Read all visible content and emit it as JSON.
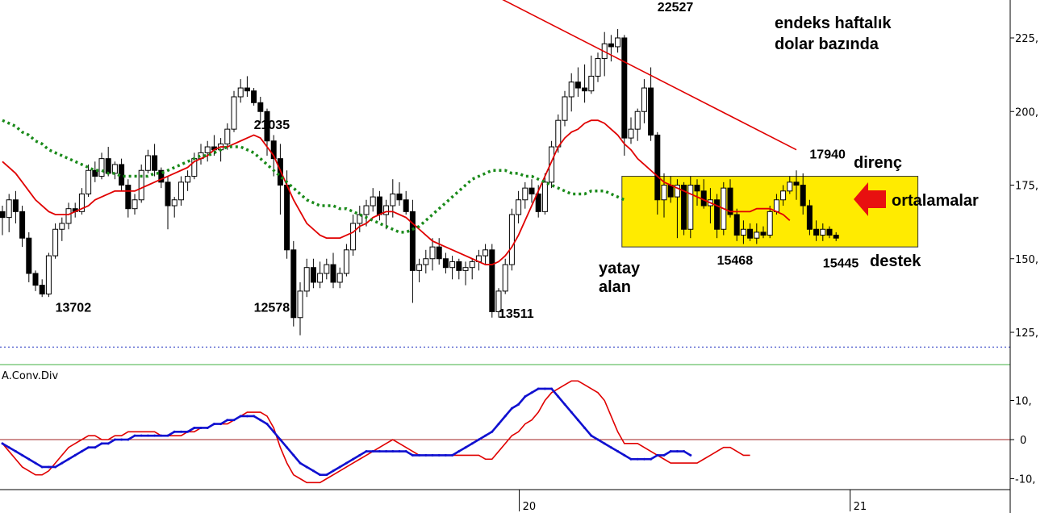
{
  "chart_data": [
    {
      "type": "candlestick",
      "title": "endeks haftalık dolar bazında",
      "y_ticks": [
        "225,",
        "200,",
        "175,",
        "150,",
        "125,"
      ],
      "y_tick_values": [
        225,
        200,
        175,
        150,
        125
      ],
      "ylim": [
        115,
        255
      ],
      "x_ticks": [
        "20",
        "21"
      ],
      "x_tick_bars": [
        78,
        128
      ],
      "bar_count": 128,
      "price_labels": [
        "13702",
        "21035",
        "12578",
        "13511",
        "22527",
        "17940",
        "15468",
        "15445"
      ],
      "price_label_bars": [
        8,
        38,
        38,
        75,
        99,
        122,
        108,
        124
      ],
      "price_label_values": [
        132,
        194,
        132,
        130,
        234,
        184,
        148,
        147
      ],
      "annotations": {
        "direnc": "direnç",
        "ortalamalar": "ortalamalar",
        "destek": "destek",
        "yatay": "yatay",
        "alan": "alan"
      },
      "yellow_zone": {
        "bar_start": 94,
        "bar_end": 138,
        "y_from": 154,
        "y_to": 178
      },
      "trendline": {
        "from": {
          "bar": 53,
          "y": 264
        },
        "to": {
          "bar": 120,
          "y": 187
        }
      },
      "dashed_level": 120,
      "candles": [
        [
          166,
          168,
          158,
          164
        ],
        [
          164,
          172,
          159,
          170
        ],
        [
          170,
          173,
          162,
          166
        ],
        [
          166,
          168,
          154,
          157
        ],
        [
          157,
          159,
          142,
          145
        ],
        [
          145,
          146,
          139,
          141
        ],
        [
          141,
          143,
          137,
          138
        ],
        [
          138,
          152,
          137,
          151
        ],
        [
          151,
          162,
          150,
          160
        ],
        [
          160,
          164,
          156,
          162
        ],
        [
          162,
          169,
          160,
          167
        ],
        [
          167,
          169,
          164,
          166
        ],
        [
          166,
          174,
          165,
          172
        ],
        [
          172,
          182,
          171,
          180
        ],
        [
          180,
          183,
          176,
          178
        ],
        [
          178,
          186,
          177,
          184
        ],
        [
          184,
          188,
          178,
          179
        ],
        [
          179,
          183,
          177,
          182
        ],
        [
          182,
          184,
          173,
          175
        ],
        [
          175,
          177,
          164,
          167
        ],
        [
          167,
          172,
          165,
          170
        ],
        [
          170,
          182,
          169,
          180
        ],
        [
          180,
          187,
          179,
          185
        ],
        [
          185,
          189,
          178,
          180
        ],
        [
          180,
          181,
          174,
          176
        ],
        [
          176,
          178,
          160,
          168
        ],
        [
          168,
          171,
          164,
          170
        ],
        [
          170,
          178,
          168,
          176
        ],
        [
          176,
          180,
          173,
          178
        ],
        [
          178,
          186,
          177,
          184
        ],
        [
          184,
          189,
          182,
          186
        ],
        [
          186,
          190,
          183,
          188
        ],
        [
          188,
          192,
          185,
          187
        ],
        [
          187,
          191,
          183,
          189
        ],
        [
          189,
          196,
          187,
          194
        ],
        [
          194,
          207,
          193,
          205
        ],
        [
          205,
          211,
          203,
          208
        ],
        [
          208,
          212,
          205,
          207
        ],
        [
          207,
          208,
          202,
          203
        ],
        [
          203,
          205,
          196,
          200
        ],
        [
          200,
          201,
          185,
          190
        ],
        [
          190,
          192,
          178,
          184
        ],
        [
          184,
          189,
          165,
          175
        ],
        [
          175,
          180,
          150,
          153
        ],
        [
          153,
          156,
          127,
          130
        ],
        [
          130,
          142,
          124,
          139
        ],
        [
          139,
          150,
          137,
          147
        ],
        [
          147,
          150,
          140,
          142
        ],
        [
          142,
          149,
          140,
          145
        ],
        [
          145,
          150,
          143,
          148
        ],
        [
          148,
          152,
          140,
          142
        ],
        [
          142,
          147,
          140,
          145
        ],
        [
          145,
          155,
          144,
          153
        ],
        [
          153,
          165,
          151,
          162
        ],
        [
          162,
          168,
          159,
          165
        ],
        [
          165,
          170,
          161,
          168
        ],
        [
          168,
          174,
          166,
          171
        ],
        [
          171,
          173,
          163,
          165
        ],
        [
          165,
          170,
          160,
          168
        ],
        [
          168,
          177,
          164,
          172
        ],
        [
          172,
          176,
          168,
          170
        ],
        [
          170,
          173,
          165,
          166
        ],
        [
          166,
          170,
          135,
          146
        ],
        [
          146,
          150,
          142,
          148
        ],
        [
          148,
          153,
          145,
          150
        ],
        [
          150,
          157,
          146,
          154
        ],
        [
          154,
          157,
          148,
          150
        ],
        [
          150,
          152,
          145,
          147
        ],
        [
          147,
          151,
          143,
          149
        ],
        [
          149,
          150,
          143,
          146
        ],
        [
          146,
          149,
          141,
          147
        ],
        [
          147,
          150,
          143,
          149
        ],
        [
          149,
          153,
          146,
          151
        ],
        [
          151,
          155,
          148,
          153
        ],
        [
          153,
          155,
          130,
          132
        ],
        [
          132,
          140,
          130,
          139
        ],
        [
          139,
          150,
          138,
          148
        ],
        [
          148,
          167,
          146,
          165
        ],
        [
          165,
          173,
          162,
          170
        ],
        [
          170,
          176,
          167,
          174
        ],
        [
          174,
          177,
          169,
          172
        ],
        [
          172,
          175,
          164,
          166
        ],
        [
          166,
          179,
          165,
          176
        ],
        [
          176,
          190,
          174,
          188
        ],
        [
          188,
          199,
          186,
          197
        ],
        [
          197,
          207,
          195,
          205
        ],
        [
          205,
          213,
          200,
          210
        ],
        [
          210,
          215,
          205,
          208
        ],
        [
          208,
          216,
          203,
          207
        ],
        [
          207,
          219,
          206,
          212
        ],
        [
          212,
          220,
          210,
          218
        ],
        [
          218,
          227,
          212,
          223
        ],
        [
          223,
          226,
          217,
          222
        ],
        [
          222,
          228,
          220,
          225
        ],
        [
          225,
          226,
          185,
          191
        ],
        [
          191,
          198,
          189,
          194
        ],
        [
          194,
          201,
          190,
          200
        ],
        [
          200,
          211,
          196,
          208
        ],
        [
          208,
          215,
          190,
          192
        ],
        [
          192,
          193,
          165,
          170
        ],
        [
          170,
          179,
          164,
          175
        ],
        [
          175,
          178,
          169,
          171
        ],
        [
          171,
          177,
          157,
          175
        ],
        [
          175,
          176,
          158,
          160
        ],
        [
          160,
          178,
          157,
          175
        ],
        [
          175,
          177,
          168,
          173
        ],
        [
          173,
          177,
          167,
          168
        ],
        [
          168,
          174,
          162,
          170
        ],
        [
          170,
          172,
          157,
          160
        ],
        [
          160,
          176,
          158,
          174
        ],
        [
          174,
          177,
          164,
          165
        ],
        [
          165,
          167,
          156,
          158
        ],
        [
          158,
          163,
          155,
          160
        ],
        [
          160,
          162,
          156,
          157
        ],
        [
          157,
          162,
          155,
          159
        ],
        [
          159,
          161,
          157,
          158
        ],
        [
          158,
          168,
          157,
          166
        ],
        [
          166,
          172,
          165,
          170
        ],
        [
          170,
          175,
          168,
          173
        ],
        [
          173,
          178,
          172,
          176
        ],
        [
          176,
          180,
          170,
          175
        ],
        [
          175,
          179,
          165,
          168
        ],
        [
          168,
          170,
          158,
          160
        ],
        [
          160,
          163,
          156,
          158
        ],
        [
          158,
          162,
          156,
          160
        ],
        [
          160,
          161,
          157,
          158
        ],
        [
          158,
          159,
          156,
          157
        ]
      ],
      "series": [
        {
          "name": "",
          "color": "#e00000",
          "style": "solid",
          "values": [
            183,
            181,
            179,
            176,
            173,
            170,
            168,
            166,
            165,
            165,
            165,
            166,
            167,
            168,
            170,
            171,
            172,
            173,
            173,
            173,
            173,
            174,
            175,
            176,
            177,
            178,
            179,
            180,
            181,
            183,
            184,
            185,
            187,
            188,
            188,
            189,
            190,
            191,
            192,
            191,
            188,
            185,
            180,
            175,
            170,
            166,
            162,
            160,
            158,
            157,
            157,
            157,
            158,
            159,
            161,
            162,
            164,
            165,
            166,
            166,
            165,
            164,
            162,
            160,
            158,
            156,
            155,
            154,
            153,
            152,
            151,
            150,
            149,
            148,
            148,
            149,
            151,
            154,
            158,
            163,
            168,
            173,
            178,
            183,
            188,
            191,
            193,
            194,
            196,
            197,
            197,
            196,
            194,
            192,
            189,
            187,
            184,
            182,
            180,
            178,
            176,
            175,
            174,
            173,
            172,
            171,
            170,
            169,
            168,
            167,
            166,
            166,
            166,
            166,
            167,
            167,
            167,
            166,
            165,
            163
          ]
        },
        {
          "name": "",
          "color": "#1a8a1a",
          "style": "dotted",
          "values": [
            197,
            196,
            195,
            193,
            192,
            190,
            189,
            187,
            186,
            185,
            184,
            183,
            182,
            181,
            180,
            180,
            179,
            179,
            178,
            178,
            178,
            178,
            178,
            179,
            179,
            180,
            181,
            182,
            183,
            184,
            185,
            185,
            186,
            187,
            188,
            188,
            188,
            187,
            186,
            184,
            182,
            180,
            178,
            176,
            174,
            172,
            170,
            169,
            168,
            168,
            168,
            167,
            167,
            166,
            165,
            164,
            163,
            162,
            161,
            160,
            159,
            159,
            160,
            161,
            163,
            165,
            167,
            169,
            171,
            173,
            175,
            177,
            178,
            179,
            180,
            180,
            180,
            179,
            179,
            178,
            178,
            177,
            176,
            175,
            174,
            173,
            172,
            172,
            172,
            173,
            173,
            173,
            172,
            171,
            170
          ]
        }
      ]
    },
    {
      "type": "line",
      "title": "A.Conv.Div",
      "y_ticks": [
        "10,",
        "0",
        "-10,"
      ],
      "y_tick_values": [
        10,
        0,
        -10
      ],
      "ylim": [
        -13,
        17
      ],
      "series": [
        {
          "name": "",
          "color": "#e00000",
          "values": [
            -1,
            -3,
            -5,
            -7,
            -8,
            -9,
            -9,
            -8,
            -6,
            -4,
            -2,
            -1,
            0,
            1,
            1,
            0,
            0,
            1,
            1,
            2,
            2,
            2,
            2,
            2,
            1,
            1,
            1,
            1,
            2,
            2,
            3,
            3,
            4,
            4,
            4,
            5,
            6,
            7,
            7,
            7,
            6,
            3,
            -2,
            -6,
            -9,
            -10,
            -11,
            -11,
            -11,
            -10,
            -9,
            -8,
            -7,
            -6,
            -5,
            -4,
            -3,
            -2,
            -1,
            0,
            -1,
            -2,
            -3,
            -4,
            -4,
            -4,
            -4,
            -4,
            -4,
            -4,
            -4,
            -4,
            -4,
            -5,
            -5,
            -3,
            -1,
            1,
            2,
            4,
            5,
            7,
            10,
            12,
            13,
            14,
            15,
            15,
            14,
            13,
            12,
            10,
            6,
            2,
            -1,
            -1,
            -1,
            -2,
            -3,
            -4,
            -5,
            -6,
            -6,
            -6,
            -6,
            -6,
            -5,
            -4,
            -3,
            -2,
            -2,
            -3,
            -4,
            -4
          ]
        },
        {
          "name": "",
          "color": "#1010d0",
          "values": [
            -1,
            -2,
            -3,
            -4,
            -5,
            -6,
            -7,
            -7,
            -7,
            -6,
            -5,
            -4,
            -3,
            -2,
            -2,
            -1,
            -1,
            0,
            0,
            0,
            1,
            1,
            1,
            1,
            1,
            1,
            2,
            2,
            2,
            3,
            3,
            3,
            4,
            4,
            5,
            5,
            6,
            6,
            6,
            5,
            4,
            2,
            0,
            -2,
            -4,
            -6,
            -7,
            -8,
            -9,
            -9,
            -8,
            -7,
            -6,
            -5,
            -4,
            -3,
            -3,
            -3,
            -3,
            -3,
            -3,
            -3,
            -4,
            -4,
            -4,
            -4,
            -4,
            -4,
            -4,
            -3,
            -2,
            -1,
            0,
            1,
            2,
            4,
            6,
            8,
            9,
            11,
            12,
            13,
            13,
            13,
            11,
            9,
            7,
            5,
            3,
            1,
            0,
            -1,
            -2,
            -3,
            -4,
            -5,
            -5,
            -5,
            -5,
            -4,
            -4,
            -3,
            -3,
            -3,
            -4
          ]
        }
      ]
    }
  ]
}
